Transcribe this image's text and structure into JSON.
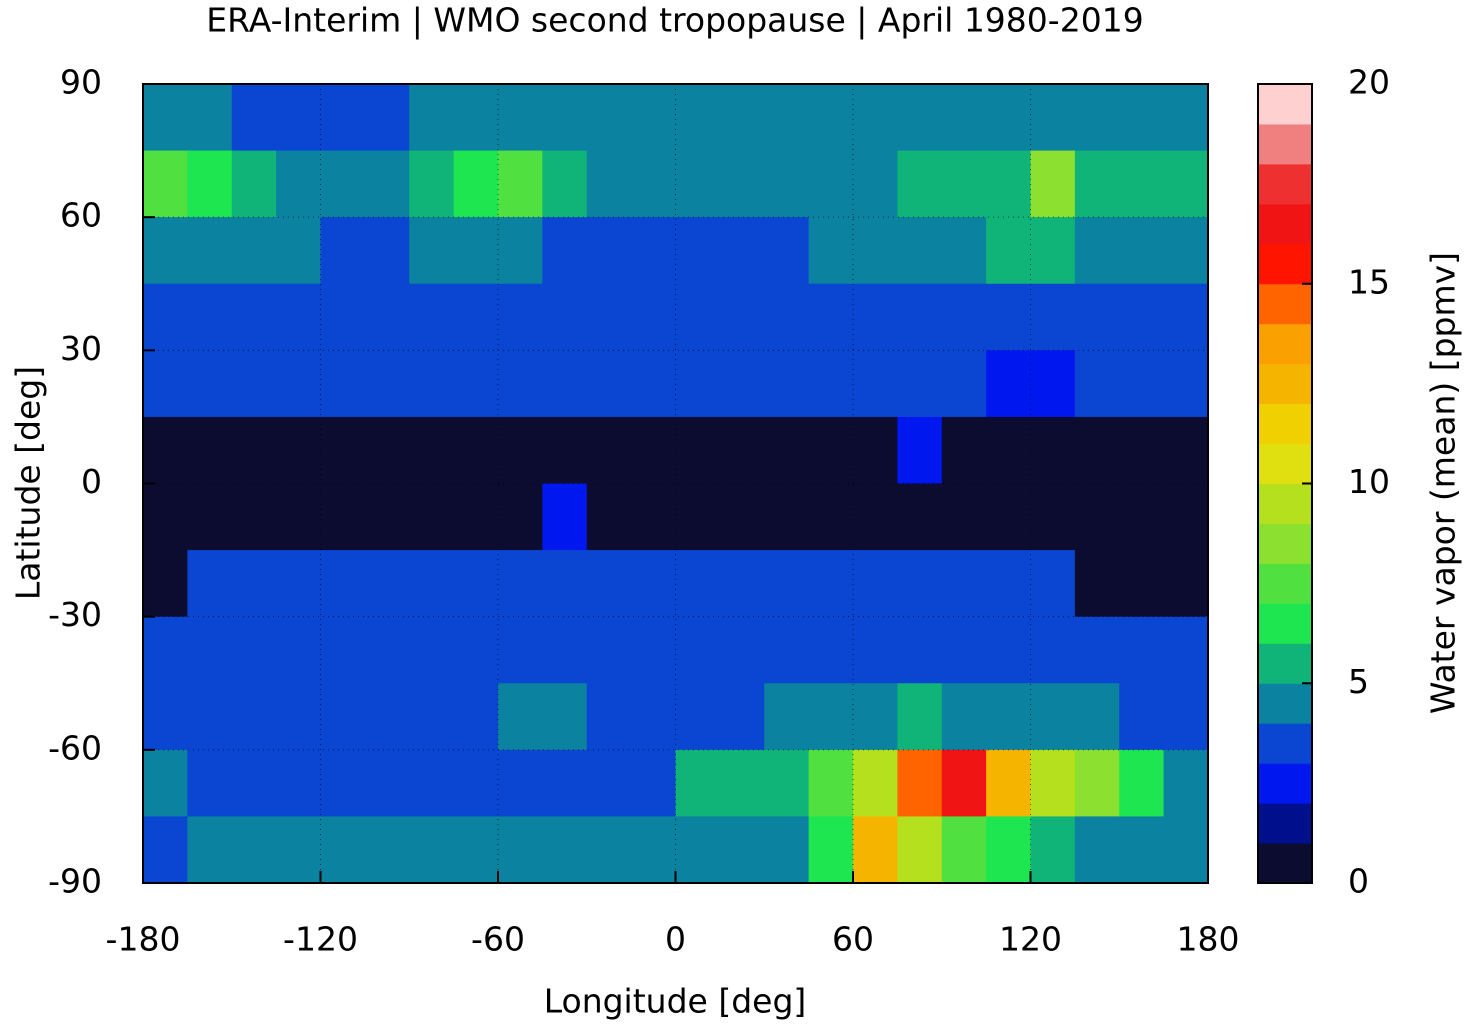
{
  "chart_data": {
    "type": "heatmap",
    "title": "ERA-Interim | WMO second tropopause | April 1980-2019",
    "x_label": "Longitude [deg]",
    "y_label": "Latitude [deg]",
    "xlim": [
      -180,
      180
    ],
    "ylim": [
      -90,
      90
    ],
    "xticks": [
      -180,
      -120,
      -60,
      0,
      60,
      120,
      180
    ],
    "yticks": [
      -90,
      -60,
      -30,
      0,
      30,
      60,
      90
    ],
    "grid": true,
    "x": [
      -172.5,
      -157.5,
      -142.5,
      -127.5,
      -112.5,
      -97.5,
      -82.5,
      -67.5,
      -52.5,
      -37.5,
      -22.5,
      -7.5,
      7.5,
      22.5,
      37.5,
      52.5,
      67.5,
      82.5,
      97.5,
      112.5,
      127.5,
      142.5,
      157.5,
      172.5
    ],
    "y": [
      82.5,
      67.5,
      52.5,
      37.5,
      22.5,
      7.5,
      -7.5,
      -22.5,
      -37.5,
      -52.5,
      -67.5,
      -82.5
    ],
    "z": [
      [
        4,
        4,
        3.5,
        3.5,
        3.5,
        3.5,
        4,
        4,
        4,
        4,
        4,
        4,
        4,
        4,
        4,
        4,
        4,
        4,
        4,
        4,
        4,
        4,
        4.5,
        4
      ],
      [
        7,
        6,
        5,
        4.5,
        4,
        4.5,
        5,
        6.5,
        7,
        5,
        4.5,
        4,
        4,
        4,
        4,
        4.5,
        4.5,
        5,
        5,
        5.5,
        8,
        5.5,
        5,
        5.5
      ],
      [
        4,
        4.5,
        4.5,
        4,
        3.5,
        3.5,
        4.5,
        4.5,
        4,
        3.5,
        3.5,
        3.5,
        3.5,
        3.5,
        3.5,
        4,
        4,
        4.5,
        4.5,
        5,
        5,
        4.5,
        4,
        4
      ],
      [
        3.5,
        3.5,
        3.5,
        3.5,
        3.5,
        3.5,
        3.5,
        3.5,
        3.5,
        3.5,
        3.5,
        3.5,
        3.5,
        3.5,
        3.5,
        3.5,
        3.5,
        3.5,
        3.5,
        3.5,
        3.5,
        3.5,
        3.5,
        3.5
      ],
      [
        3.5,
        3.5,
        3.5,
        3.5,
        3.5,
        3.5,
        3.5,
        3.5,
        3.5,
        3.5,
        3.5,
        3.5,
        3.5,
        3.5,
        3.5,
        3.5,
        3.5,
        3.5,
        3,
        2.5,
        2.5,
        3,
        3,
        3
      ],
      [
        0.5,
        0.5,
        0.5,
        0.5,
        0.5,
        0.5,
        0.5,
        0.5,
        0.5,
        0.5,
        0.5,
        0.5,
        0.5,
        0.5,
        0.5,
        0.5,
        0.5,
        2.5,
        0.5,
        0.5,
        0.5,
        0.5,
        0.5,
        0.5
      ],
      [
        0.5,
        0.5,
        0.5,
        0.5,
        0.5,
        0.5,
        0.5,
        0.5,
        0.5,
        2.5,
        0.5,
        0.5,
        0.5,
        0.5,
        0.5,
        0.5,
        0.5,
        0.5,
        0.5,
        0.5,
        0.5,
        0.5,
        0.5,
        0.5
      ],
      [
        0.5,
        3.5,
        3.5,
        3.5,
        3.5,
        3.5,
        3.5,
        3.5,
        3.5,
        3.5,
        3.5,
        3.5,
        3.5,
        3.5,
        3.5,
        3.5,
        3.5,
        3.5,
        3.5,
        3.5,
        3.5,
        0.5,
        0.5,
        0.5
      ],
      [
        3.5,
        3.5,
        3.5,
        3.5,
        3.5,
        3.5,
        3.5,
        3.5,
        3.5,
        3.5,
        3.5,
        3.5,
        3.5,
        3.5,
        3.5,
        3.5,
        3.5,
        3.5,
        3.5,
        3.5,
        3.5,
        3.5,
        3.5,
        3.5
      ],
      [
        3.5,
        3.5,
        3.5,
        3.5,
        3.5,
        3.5,
        3.5,
        3.5,
        4.5,
        4.5,
        3.5,
        3.5,
        3.5,
        3.5,
        4.5,
        4.5,
        4.5,
        5,
        4.5,
        4.5,
        4.5,
        4,
        3.5,
        3.5
      ],
      [
        4,
        3.5,
        3.5,
        3.5,
        3.5,
        3.5,
        3.5,
        3.5,
        3.5,
        3.5,
        3.5,
        3.5,
        5,
        5,
        5.5,
        7,
        9,
        14,
        16,
        12,
        9,
        8,
        6,
        4.5
      ],
      [
        3.5,
        4,
        4,
        4,
        4,
        4,
        4,
        4,
        4,
        4,
        4,
        4,
        4,
        4,
        4.5,
        6,
        12,
        9,
        7,
        6,
        5,
        4.5,
        4.5,
        4
      ]
    ],
    "colorbar": {
      "label": "Water vapor (mean) [ppmv]",
      "lim": [
        0,
        20
      ],
      "ticks": [
        0,
        5,
        10,
        15,
        20
      ],
      "colors": [
        "#0c0c30",
        "#00108c",
        "#0018f0",
        "#0a46d2",
        "#0a82a0",
        "#10b478",
        "#1ee650",
        "#50e040",
        "#8ce030",
        "#b4e01e",
        "#e0e010",
        "#f0d000",
        "#f5b400",
        "#faa000",
        "#ff6400",
        "#ff1400",
        "#f01414",
        "#ee3030",
        "#f08080",
        "#ffd0d0"
      ]
    }
  }
}
